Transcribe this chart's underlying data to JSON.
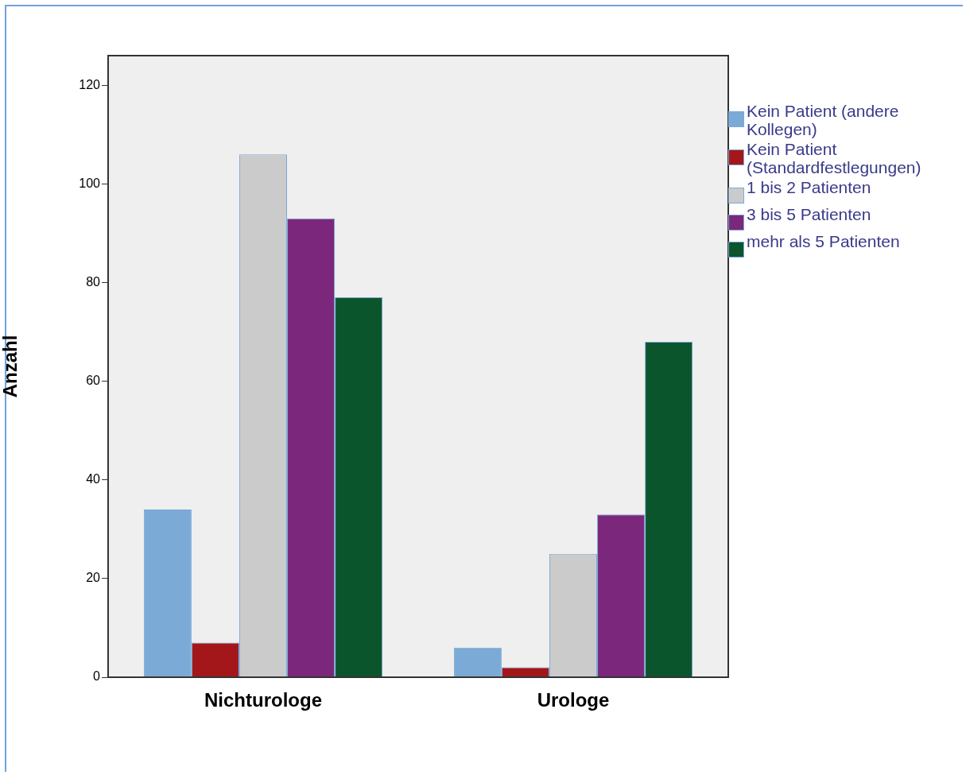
{
  "chart_data": {
    "type": "bar",
    "ylabel": "Anzahl",
    "categories": [
      "Nichturologe",
      "Urologe"
    ],
    "series": [
      {
        "name": "Kein Patient (andere Kollegen)",
        "color": "#7baad6",
        "values": [
          34,
          6
        ]
      },
      {
        "name": "Kein Patient (Standardfestlegungen)",
        "color": "#a3171b",
        "values": [
          7,
          2
        ]
      },
      {
        "name": "1 bis 2 Patienten",
        "color": "#cbcbcb",
        "values": [
          106,
          25
        ]
      },
      {
        "name": "3 bis 5 Patienten",
        "color": "#7b287c",
        "values": [
          93,
          33
        ]
      },
      {
        "name": "mehr als 5 Patienten",
        "color": "#0b552d",
        "values": [
          77,
          68
        ]
      }
    ],
    "ylim": [
      0,
      126
    ],
    "yticks": [
      0,
      20,
      40,
      60,
      80,
      100,
      120
    ],
    "grid": false,
    "legend": "right"
  }
}
